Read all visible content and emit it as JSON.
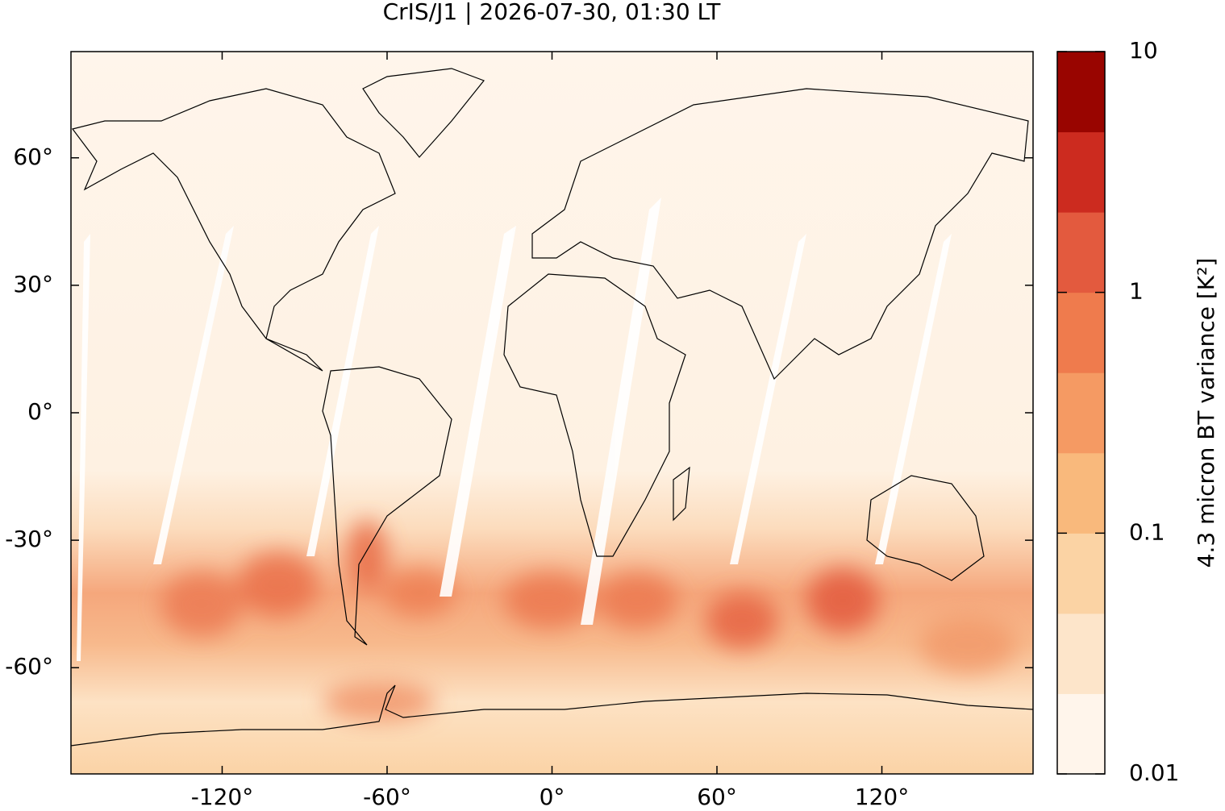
{
  "chart_data": {
    "type": "map",
    "title": "CrIS/J1 | 2026-07-30, 01:30 LT",
    "xlim": [
      -175,
      175
    ],
    "ylim": [
      -85,
      85
    ],
    "xticks": [
      {
        "value": -120,
        "label": "-120°"
      },
      {
        "value": -60,
        "label": "-60°"
      },
      {
        "value": 0,
        "label": "0°"
      },
      {
        "value": 60,
        "label": "60°"
      },
      {
        "value": 120,
        "label": "120°"
      }
    ],
    "yticks": [
      {
        "value": -60,
        "label": "-60°"
      },
      {
        "value": -30,
        "label": "-30°"
      },
      {
        "value": 0,
        "label": "0°"
      },
      {
        "value": 30,
        "label": "30°"
      },
      {
        "value": 60,
        "label": "60°"
      }
    ],
    "colorbar": {
      "label": "4.3 micron BT variance [K²]",
      "log": true,
      "lim": [
        0.01,
        10
      ],
      "ticks": [
        0.01,
        0.1,
        1,
        10
      ],
      "colors": [
        "#fff5eb",
        "#fde5ca",
        "#fbd3a4",
        "#f9b97c",
        "#f59a63",
        "#ef7b4d",
        "#e35a3e",
        "#cc2b1f",
        "#990500"
      ]
    }
  }
}
